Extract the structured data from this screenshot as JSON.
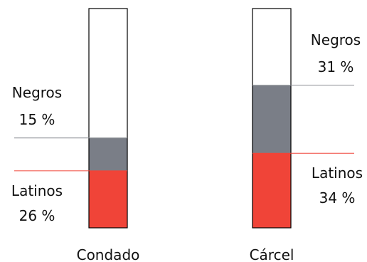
{
  "chart_data": {
    "type": "bar",
    "stacked": true,
    "categories": [
      "Condado",
      "Cárcel"
    ],
    "ylim": [
      0,
      100
    ],
    "series": [
      {
        "name": "Latinos",
        "values": [
          26,
          34
        ],
        "labels": [
          "26 %",
          "34 %"
        ],
        "color": "#f04438"
      },
      {
        "name": "Negros",
        "values": [
          15,
          31
        ],
        "labels": [
          "15 %",
          "31 %"
        ],
        "color": "#7a7e87"
      }
    ],
    "remainder_color": "#ffffff",
    "outline_color": "#000000",
    "leader_colors": {
      "Latinos": "#f04438",
      "Negros": "#8a8d94"
    }
  }
}
